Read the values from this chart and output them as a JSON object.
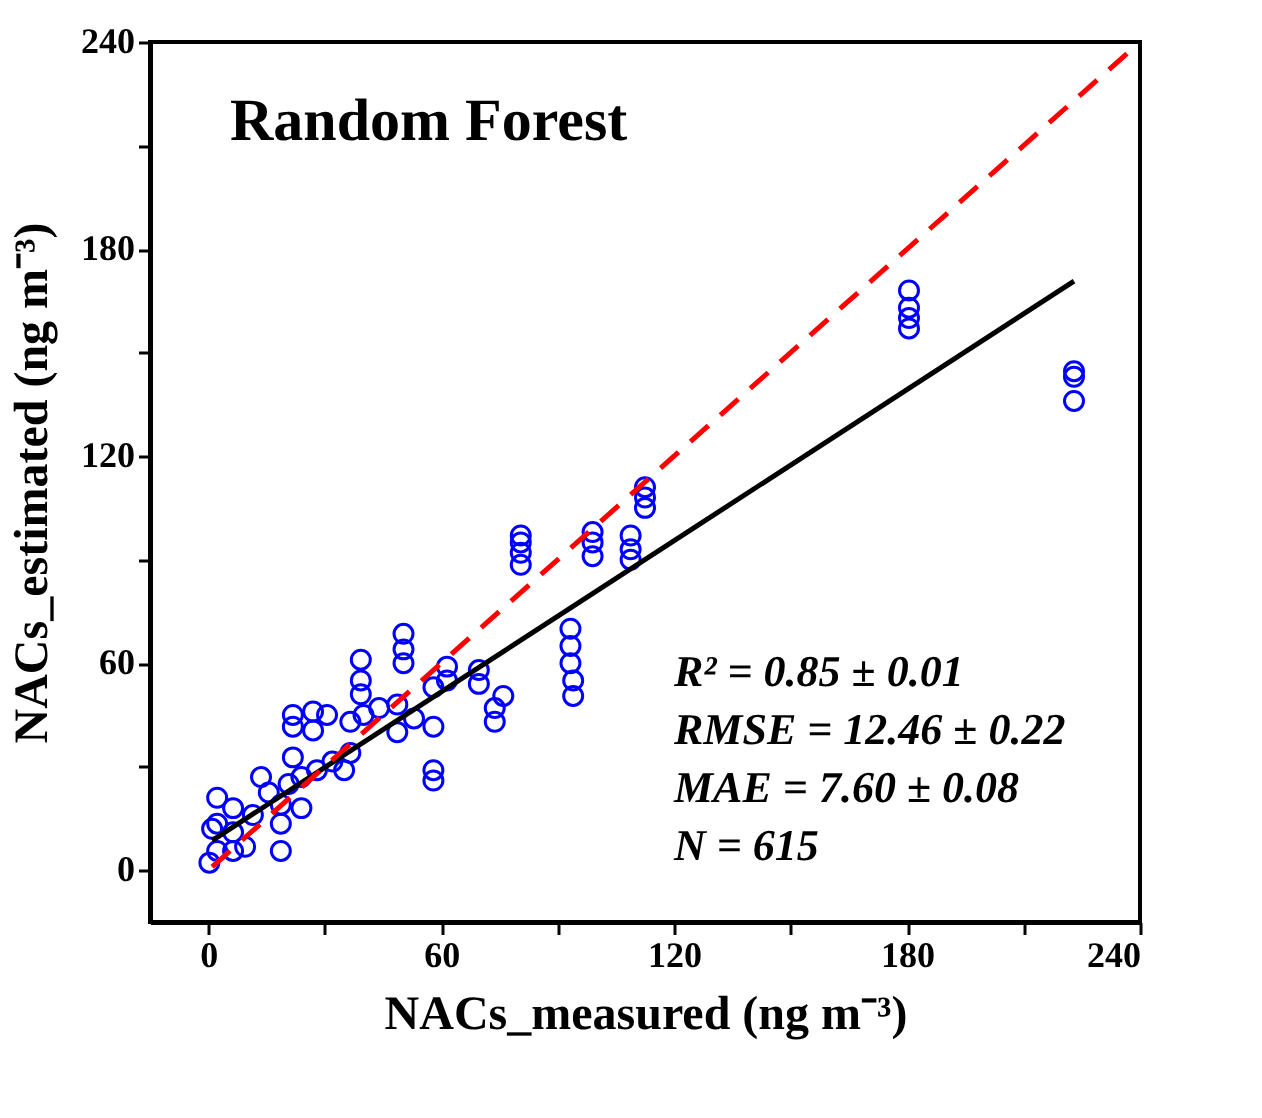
{
  "chart_data": {
    "type": "scatter",
    "title": "Random Forest",
    "xlabel": "NACs_measured (ng m⁻³)",
    "ylabel": "NACs_estimated (ng m⁻³)",
    "xlim": [
      -15,
      240
    ],
    "ylim": [
      -15,
      240
    ],
    "xticks": [
      0,
      {
        "value": 30,
        "label": null
      },
      60,
      {
        "value": 90,
        "label": null
      },
      120,
      {
        "value": 150,
        "label": null
      },
      180,
      {
        "value": 210,
        "label": null
      },
      240
    ],
    "yticks": [
      0,
      {
        "value": 30,
        "label": null
      },
      60,
      {
        "value": 90,
        "label": null
      },
      120,
      {
        "value": 150,
        "label": null
      },
      180,
      {
        "value": 210,
        "label": null
      },
      240
    ],
    "grid": false,
    "annotations": [
      "R² = 0.85 ± 0.01",
      "RMSE = 12.46 ± 0.22",
      "MAE = 7.60 ± 0.08",
      "N = 615"
    ],
    "series": [
      {
        "color": "#0000ff",
        "marker": "circle",
        "x": [
          180.5,
          180.5,
          180.5,
          180.5,
          223,
          223,
          223,
          112.5,
          112.5,
          112.5,
          80.5,
          80.5,
          80.5,
          80.5,
          99,
          99,
          99,
          108.8,
          108.8,
          108.8,
          93.3,
          93.3,
          93.3,
          94,
          94,
          50.3,
          50.3,
          50.3,
          39.3,
          39.3,
          39.3,
          61.5,
          61.5,
          69.7,
          69.7,
          76,
          73.8,
          73.8,
          58,
          58,
          58,
          58,
          48.7,
          48.7,
          40,
          53,
          44,
          21.8,
          21.8,
          21.8,
          27,
          27,
          30.6,
          36.6,
          24,
          28,
          32,
          35,
          36.6,
          18.7,
          18.7,
          13.6,
          15.6,
          11.5,
          9.5,
          18.7,
          2.3,
          2.3,
          2.3,
          0.3,
          1,
          6.4,
          6.4,
          6.4,
          24,
          20.7
        ],
        "values": [
          168,
          163,
          160,
          157,
          144.6,
          143,
          136,
          111,
          108,
          105,
          97,
          95,
          92,
          88.5,
          98,
          95,
          91,
          97,
          93,
          90,
          70,
          65,
          60,
          55,
          50.5,
          68.5,
          64,
          60,
          61,
          55,
          51,
          59,
          55,
          58,
          54,
          50.5,
          47,
          43,
          29,
          26,
          53,
          41.6,
          48,
          40,
          45,
          44,
          47,
          45,
          41.6,
          32.7,
          46,
          40.5,
          45,
          43,
          27,
          29,
          31.5,
          29,
          34,
          19,
          13.5,
          27,
          22.5,
          16,
          6.8,
          5.6,
          21,
          13.5,
          5.6,
          2.2,
          12,
          18,
          11,
          5.6,
          18,
          25
        ]
      },
      {
        "type": "line",
        "color": "#000000",
        "line_style": "solid",
        "x": [
          1,
          223
        ],
        "values": [
          8.6,
          170.7
        ]
      },
      {
        "type": "line",
        "color": "#ff0000",
        "line_style": "dashed",
        "x": [
          1,
          237
        ],
        "values": [
          1,
          237
        ]
      }
    ]
  }
}
